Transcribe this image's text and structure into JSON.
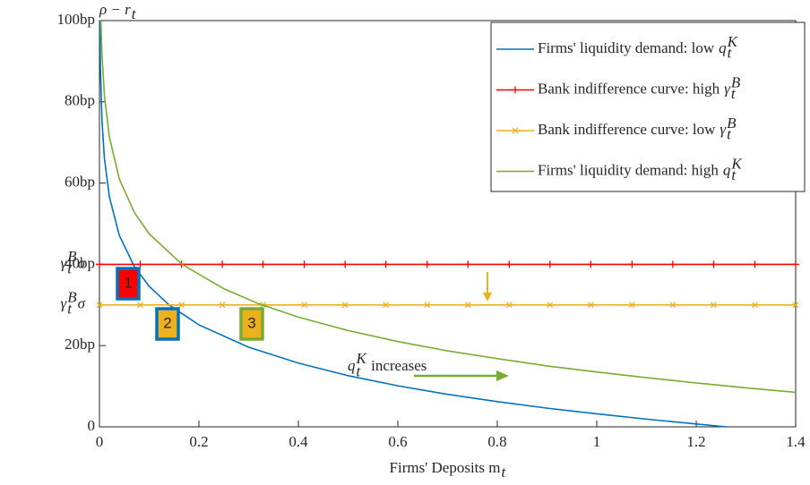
{
  "chart_data": {
    "type": "line",
    "y_label": {
      "text": "ρ − r",
      "sub": "t"
    },
    "x_label": {
      "text": "Firms' Deposits m",
      "sub": "t"
    },
    "xlim": [
      0,
      1.4
    ],
    "ylim": [
      0,
      100
    ],
    "xticks": [
      0,
      0.2,
      0.4,
      0.6,
      0.8,
      1,
      1.2,
      1.4
    ],
    "yticks": [
      0,
      {
        "value": 20,
        "label": "20bp"
      },
      {
        "value": 40,
        "label": "40bp"
      },
      {
        "value": 60,
        "label": "60bp"
      },
      {
        "value": 80,
        "label": "80bp"
      },
      {
        "value": 100,
        "label": "100bp"
      }
    ],
    "legend": "upper right",
    "series": [
      {
        "name": "Firms' liquidity demand: low",
        "symbol": {
          "base": "q",
          "sub": "t",
          "sup": "K"
        },
        "color": "#0072bd",
        "marker": "none",
        "x": [
          0.0008,
          0.002,
          0.005,
          0.01,
          0.02,
          0.04,
          0.07,
          0.1,
          0.14,
          0.2,
          0.3,
          0.4,
          0.5,
          0.6,
          0.7,
          0.8,
          0.9,
          1.0,
          1.1,
          1.2,
          1.26
        ],
        "values": [
          100,
          88.0,
          75.5,
          66.0,
          56.6,
          47.1,
          39.5,
          34.6,
          30.0,
          25.1,
          19.6,
          15.7,
          12.6,
          10.1,
          8.0,
          6.2,
          4.6,
          3.2,
          1.9,
          0.7,
          0
        ]
      },
      {
        "name": "Bank indifference curve: high",
        "symbol": {
          "base": "γ",
          "sub": "t",
          "sup": "B"
        },
        "color": "#ff0000",
        "marker": "plus",
        "x": [
          0,
          0.082,
          0.165,
          0.247,
          0.329,
          0.412,
          0.494,
          0.576,
          0.659,
          0.741,
          0.824,
          0.906,
          0.988,
          1.071,
          1.153,
          1.235,
          1.318,
          1.4
        ],
        "values": [
          40,
          40,
          40,
          40,
          40,
          40,
          40,
          40,
          40,
          40,
          40,
          40,
          40,
          40,
          40,
          40,
          40,
          40
        ]
      },
      {
        "name": "Bank indifference curve: low",
        "symbol": {
          "base": "γ",
          "sub": "t",
          "sup": "B"
        },
        "color": "#edb120",
        "marker": "cross",
        "x": [
          0,
          0.082,
          0.165,
          0.247,
          0.329,
          0.412,
          0.494,
          0.576,
          0.659,
          0.741,
          0.824,
          0.906,
          0.988,
          1.071,
          1.153,
          1.235,
          1.318,
          1.4
        ],
        "values": [
          30,
          30,
          30,
          30,
          30,
          30,
          30,
          30,
          30,
          30,
          30,
          30,
          30,
          30,
          30,
          30,
          30,
          30
        ]
      },
      {
        "name": "Firms' liquidity demand: high",
        "symbol": {
          "base": "q",
          "sub": "t",
          "sup": "K"
        },
        "color": "#77ac30",
        "marker": "none",
        "x": [
          0.0029,
          0.005,
          0.01,
          0.02,
          0.04,
          0.07,
          0.1,
          0.166,
          0.25,
          0.32,
          0.4,
          0.5,
          0.6,
          0.7,
          0.8,
          0.9,
          1.0,
          1.1,
          1.2,
          1.3,
          1.4
        ],
        "values": [
          100,
          91.8,
          81.5,
          71.3,
          61.0,
          52.8,
          47.5,
          40,
          34.0,
          30.3,
          27.0,
          23.7,
          21.0,
          18.7,
          16.8,
          15.0,
          13.5,
          12.1,
          10.8,
          9.6,
          8.5
        ]
      }
    ],
    "annotations": {
      "high_gamma": {
        "base": "γ",
        "sub": "t",
        "sup": "B",
        "tail": "σ"
      },
      "low_gamma": {
        "base": "γ",
        "sub": "t",
        "sup": "B",
        "tail": "σ"
      },
      "q_increase": {
        "base": "q",
        "sub": "t",
        "sup": "K",
        "tail": " increases"
      },
      "boxes": [
        "1",
        "2",
        "3"
      ]
    }
  }
}
